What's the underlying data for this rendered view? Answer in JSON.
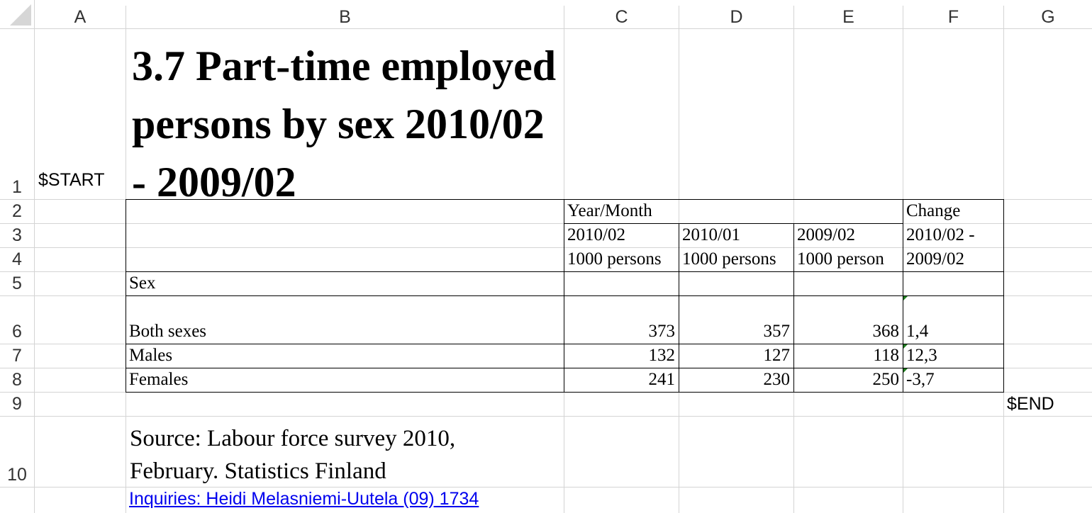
{
  "columns": [
    "A",
    "B",
    "C",
    "D",
    "E",
    "F",
    "G"
  ],
  "rows": [
    "1",
    "2",
    "3",
    "4",
    "5",
    "6",
    "7",
    "8",
    "9",
    "10"
  ],
  "cells": {
    "a1": "$START",
    "title": "3.7 Part-time employed persons by sex 2010/02 - 2009/02",
    "year_month": "Year/Month",
    "change": "Change",
    "c3": "2010/02",
    "d3": "2010/01",
    "e3": "2009/02",
    "f3": "2010/02 -",
    "c4": "1000 persons",
    "d4": "1000 persons",
    "e4": "1000 person",
    "f4": "2009/02",
    "b5": "Sex",
    "table": [
      {
        "label": "Both sexes",
        "c": "373",
        "d": "357",
        "e": "368",
        "f": "1,4"
      },
      {
        "label": "Males",
        "c": "132",
        "d": "127",
        "e": "118",
        "f": "12,3"
      },
      {
        "label": "Females",
        "c": "241",
        "d": "230",
        "e": "250",
        "f": "-3,7"
      }
    ],
    "g9": "$END",
    "source_line1": "Source: Labour force survey 2010,",
    "source_line2": "February. Statistics Finland",
    "inquiries": "Inquiries: Heidi Melasniemi-Uutela (09) 1734 "
  }
}
